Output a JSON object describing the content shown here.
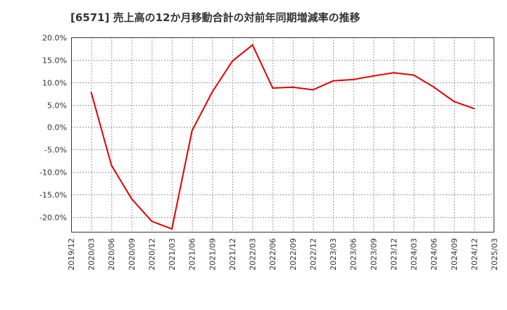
{
  "chart_data": {
    "type": "line",
    "title": "[6571]  売上高の12か月移動合計の対前年同期増減率の推移",
    "xlabel": "",
    "ylabel": "",
    "x_ticks": [
      "2019/12",
      "2020/03",
      "2020/06",
      "2020/09",
      "2020/12",
      "2021/03",
      "2021/06",
      "2021/09",
      "2021/12",
      "2022/03",
      "2022/06",
      "2022/09",
      "2022/12",
      "2023/03",
      "2023/06",
      "2023/09",
      "2023/12",
      "2024/03",
      "2024/06",
      "2024/09",
      "2024/12",
      "2025/03"
    ],
    "y_ticks": [
      20.0,
      15.0,
      10.0,
      5.0,
      0.0,
      -5.0,
      -10.0,
      -15.0,
      -20.0
    ],
    "y_tick_labels": [
      "20.0%",
      "15.0%",
      "10.0%",
      "5.0%",
      "0.0%",
      "-5.0%",
      "-10.0%",
      "-15.0%",
      "-20.0%"
    ],
    "ylim": [
      -23.5,
      20.0
    ],
    "grid": true,
    "colors": {
      "line": "#e00000",
      "grid": "#999999",
      "axis": "#333333"
    },
    "series": [
      {
        "name": "増減率",
        "x": [
          "2020/03",
          "2020/06",
          "2020/09",
          "2020/12",
          "2021/03",
          "2021/06",
          "2021/09",
          "2021/12",
          "2022/03",
          "2022/06",
          "2022/09",
          "2022/12",
          "2023/03",
          "2023/06",
          "2023/09",
          "2023/12",
          "2024/03",
          "2024/06",
          "2024/09",
          "2024/12"
        ],
        "values": [
          7.7,
          -8.5,
          -16.0,
          -21.0,
          -22.7,
          -0.8,
          7.8,
          14.7,
          18.3,
          8.7,
          8.9,
          8.3,
          10.3,
          10.6,
          11.4,
          12.1,
          11.6,
          8.9,
          5.7,
          4.1
        ]
      }
    ]
  }
}
